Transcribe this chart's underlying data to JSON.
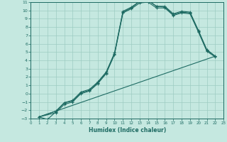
{
  "xlabel": "Humidex (Indice chaleur)",
  "xlim": [
    0,
    23
  ],
  "ylim": [
    -3,
    11
  ],
  "xticks": [
    0,
    1,
    2,
    3,
    4,
    5,
    6,
    7,
    8,
    9,
    10,
    11,
    12,
    13,
    14,
    15,
    16,
    17,
    18,
    19,
    20,
    21,
    22,
    23
  ],
  "yticks": [
    -3,
    -2,
    -1,
    0,
    1,
    2,
    3,
    4,
    5,
    6,
    7,
    8,
    9,
    10,
    11
  ],
  "bg_color": "#c5e8e0",
  "grid_color": "#9dccc2",
  "line_color": "#1e6b63",
  "line1": {
    "x": [
      1,
      2,
      3,
      4,
      5,
      6,
      7,
      8,
      9,
      10,
      11,
      12,
      13,
      14,
      15,
      16,
      17,
      18,
      19,
      20,
      21,
      22
    ],
    "y": [
      -2.8,
      -3.1,
      -2.2,
      -1.1,
      -0.9,
      0.1,
      0.4,
      1.3,
      2.5,
      4.8,
      9.8,
      10.3,
      11.1,
      11.2,
      10.5,
      10.4,
      9.5,
      9.8,
      9.7,
      7.5,
      5.2,
      4.5
    ]
  },
  "line2": {
    "x": [
      1,
      3,
      4,
      5,
      6,
      7,
      8,
      9,
      10,
      11,
      12,
      13,
      14,
      15,
      16,
      17,
      18,
      19,
      20,
      21,
      22
    ],
    "y": [
      -2.8,
      -2.1,
      -1.1,
      -0.8,
      0.2,
      0.5,
      1.4,
      2.6,
      4.9,
      9.9,
      10.4,
      11.1,
      11.2,
      10.5,
      10.5,
      9.6,
      9.9,
      9.8,
      7.6,
      5.3,
      4.5
    ]
  },
  "line3": {
    "x": [
      1,
      22
    ],
    "y": [
      -2.8,
      4.5
    ]
  },
  "line4": {
    "x": [
      1,
      3,
      4,
      5,
      6,
      7,
      8,
      9,
      10,
      11,
      12,
      13,
      14,
      15,
      16,
      17,
      18,
      19,
      20,
      21,
      22
    ],
    "y": [
      -2.8,
      -2.3,
      -1.3,
      -1.0,
      0.0,
      0.3,
      1.2,
      2.4,
      4.7,
      9.7,
      10.2,
      10.9,
      11.0,
      10.3,
      10.3,
      9.4,
      9.7,
      9.6,
      7.4,
      5.1,
      4.4
    ]
  }
}
